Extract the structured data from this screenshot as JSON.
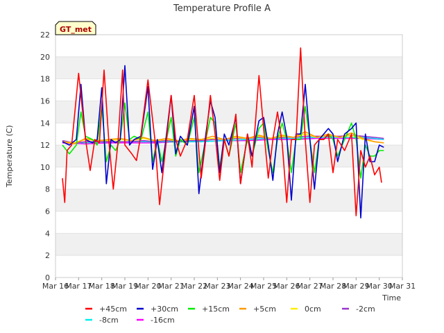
{
  "chart_data": {
    "type": "line",
    "title": "Temperature Profile A",
    "xlabel": "Time",
    "ylabel": "Temperature (C)",
    "annotation": "GT_met",
    "ylim": [
      0,
      22
    ],
    "yticks": [
      0,
      2,
      4,
      6,
      8,
      10,
      12,
      14,
      16,
      18,
      20,
      22
    ],
    "xlim": [
      16,
      31
    ],
    "xticks": [
      16,
      17,
      18,
      19,
      20,
      21,
      22,
      23,
      24,
      25,
      26,
      27,
      28,
      29,
      30,
      31
    ],
    "xtick_labels": [
      "Mar 16",
      "Mar 17",
      "Mar 18",
      "Mar 19",
      "Mar 20",
      "Mar 21",
      "Mar 22",
      "Mar 23",
      "Mar 24",
      "Mar 25",
      "Mar 26",
      "Mar 27",
      "Mar 28",
      "Mar 29",
      "Mar 30",
      "Mar 31"
    ],
    "grid": "horizontal bands",
    "legend_position": "bottom",
    "series": [
      {
        "name": "+45cm",
        "color": "#ff0000",
        "x": [
          16.3,
          16.4,
          16.5,
          16.7,
          17.0,
          17.3,
          17.5,
          17.7,
          17.9,
          18.1,
          18.3,
          18.5,
          18.7,
          18.9,
          19.0,
          19.3,
          19.5,
          19.7,
          20.0,
          20.3,
          20.5,
          20.8,
          21.0,
          21.2,
          21.4,
          21.7,
          22.0,
          22.3,
          22.5,
          22.7,
          22.9,
          23.1,
          23.3,
          23.5,
          23.8,
          24.0,
          24.3,
          24.5,
          24.8,
          25.0,
          25.2,
          25.4,
          25.6,
          25.8,
          26.0,
          26.2,
          26.4,
          26.6,
          26.8,
          27.0,
          27.2,
          27.4,
          27.6,
          27.8,
          28.0,
          28.2,
          28.5,
          28.8,
          29.0,
          29.2,
          29.4,
          29.6,
          29.8,
          30.0,
          30.1
        ],
        "values": [
          9.0,
          6.8,
          11.5,
          12.0,
          18.5,
          12.5,
          9.7,
          12.5,
          12.2,
          18.8,
          12.5,
          8.0,
          12.2,
          18.8,
          12.0,
          11.2,
          10.6,
          13.0,
          17.9,
          12.5,
          6.6,
          12.5,
          16.5,
          12.5,
          11.0,
          12.5,
          16.5,
          9.0,
          12.5,
          16.5,
          13.0,
          8.8,
          12.5,
          11.0,
          14.8,
          8.5,
          13.0,
          10.0,
          18.3,
          13.5,
          9.0,
          12.5,
          15.0,
          12.2,
          6.8,
          12.5,
          12.5,
          20.8,
          12.5,
          6.8,
          12.0,
          12.5,
          12.5,
          13.0,
          9.5,
          12.5,
          11.5,
          13.0,
          5.6,
          11.5,
          10.0,
          11.0,
          9.3,
          10.0,
          8.6
        ]
      },
      {
        "name": "+30cm",
        "color": "#0000cc",
        "x": [
          16.3,
          16.6,
          16.9,
          17.1,
          17.3,
          17.6,
          17.8,
          18.0,
          18.2,
          18.4,
          18.6,
          18.8,
          19.0,
          19.2,
          19.4,
          19.7,
          20.0,
          20.2,
          20.4,
          20.6,
          20.8,
          21.0,
          21.2,
          21.4,
          21.7,
          22.0,
          22.2,
          22.5,
          22.7,
          22.9,
          23.1,
          23.3,
          23.5,
          23.8,
          24.0,
          24.3,
          24.5,
          24.8,
          25.0,
          25.2,
          25.4,
          25.6,
          25.8,
          26.0,
          26.2,
          26.4,
          26.6,
          26.8,
          27.0,
          27.2,
          27.4,
          27.6,
          27.8,
          28.0,
          28.2,
          28.5,
          28.8,
          29.0,
          29.2,
          29.4,
          29.6,
          29.8,
          30.0,
          30.2
        ],
        "values": [
          12.3,
          12.0,
          12.5,
          17.5,
          12.5,
          12.2,
          12.5,
          17.2,
          8.5,
          12.5,
          12.2,
          12.5,
          19.2,
          12.0,
          12.5,
          12.8,
          17.3,
          9.8,
          12.5,
          9.5,
          13.0,
          16.5,
          11.2,
          12.8,
          12.0,
          15.5,
          7.6,
          13.0,
          16.0,
          14.5,
          9.5,
          13.0,
          12.0,
          14.5,
          8.5,
          13.0,
          11.0,
          14.2,
          14.5,
          12.0,
          8.8,
          13.0,
          15.0,
          12.8,
          7.0,
          13.0,
          13.0,
          17.5,
          12.5,
          8.0,
          12.5,
          13.0,
          13.5,
          13.0,
          10.5,
          13.0,
          13.5,
          14.0,
          5.4,
          13.0,
          10.5,
          10.5,
          12.0,
          11.8
        ]
      },
      {
        "name": "+15cm",
        "color": "#00ee00",
        "x": [
          16.3,
          16.6,
          16.9,
          17.1,
          17.3,
          17.6,
          17.8,
          18.0,
          18.2,
          18.4,
          18.6,
          18.8,
          19.0,
          19.2,
          19.4,
          19.7,
          20.0,
          20.2,
          20.4,
          20.6,
          20.8,
          21.0,
          21.2,
          21.4,
          21.7,
          22.0,
          22.2,
          22.5,
          22.7,
          22.9,
          23.1,
          23.3,
          23.5,
          23.8,
          24.0,
          24.3,
          24.5,
          24.8,
          25.0,
          25.2,
          25.4,
          25.6,
          25.8,
          26.0,
          26.2,
          26.4,
          26.6,
          26.8,
          27.0,
          27.2,
          27.4,
          27.6,
          27.8,
          28.0,
          28.2,
          28.5,
          28.8,
          29.0,
          29.2,
          29.4,
          29.6,
          29.8,
          30.0,
          30.2
        ],
        "values": [
          12.0,
          11.2,
          12.0,
          15.0,
          12.8,
          12.5,
          12.0,
          15.5,
          10.5,
          12.0,
          11.5,
          12.5,
          15.8,
          12.5,
          12.8,
          12.5,
          15.0,
          10.5,
          12.5,
          10.5,
          12.5,
          14.5,
          11.0,
          12.5,
          12.0,
          14.5,
          9.5,
          12.5,
          14.5,
          14.0,
          10.0,
          12.5,
          11.0,
          14.0,
          9.5,
          12.5,
          11.0,
          13.5,
          14.0,
          11.5,
          9.5,
          12.5,
          14.0,
          12.5,
          9.5,
          12.5,
          12.5,
          15.5,
          12.5,
          9.5,
          12.5,
          12.5,
          13.0,
          12.5,
          11.0,
          12.5,
          14.0,
          12.5,
          9.0,
          12.0,
          11.0,
          11.0,
          11.5,
          11.5
        ]
      },
      {
        "name": "+5cm",
        "color": "#ff9900",
        "x": [
          16.3,
          16.8,
          17.3,
          17.8,
          18.3,
          18.8,
          19.3,
          19.8,
          20.3,
          20.8,
          21.3,
          21.8,
          22.3,
          22.8,
          23.3,
          23.8,
          24.3,
          24.8,
          25.3,
          25.8,
          26.3,
          26.8,
          27.3,
          27.8,
          28.3,
          28.8,
          29.3,
          29.8,
          30.2
        ],
        "values": [
          12.3,
          12.1,
          12.6,
          12.4,
          12.5,
          12.6,
          12.4,
          12.7,
          12.4,
          12.6,
          12.4,
          12.6,
          12.5,
          12.8,
          12.5,
          12.8,
          12.6,
          12.9,
          12.6,
          12.9,
          12.7,
          13.2,
          12.7,
          13.0,
          12.7,
          13.1,
          12.6,
          12.3,
          12.2
        ]
      },
      {
        "name": "0cm",
        "color": "#ffee00",
        "x": [
          16.3,
          16.8,
          17.3,
          17.8,
          18.3,
          18.8,
          19.3,
          19.8,
          20.3,
          20.8,
          21.3,
          21.8,
          22.3,
          22.8,
          23.3,
          23.8,
          24.3,
          24.8,
          25.3,
          25.8,
          26.3,
          26.8,
          27.3,
          27.8,
          28.3,
          28.8,
          29.3,
          29.8,
          30.2
        ],
        "values": [
          12.3,
          12.2,
          12.5,
          12.4,
          12.4,
          12.5,
          12.4,
          12.6,
          12.4,
          12.5,
          12.4,
          12.5,
          12.5,
          12.6,
          12.5,
          12.7,
          12.6,
          12.8,
          12.6,
          12.8,
          12.7,
          13.0,
          12.7,
          12.9,
          12.7,
          12.9,
          12.5,
          12.3,
          12.2
        ]
      },
      {
        "name": "-2cm",
        "color": "#9933cc",
        "x": [
          16.3,
          16.8,
          17.3,
          17.8,
          18.3,
          18.8,
          19.3,
          19.8,
          20.3,
          20.8,
          21.3,
          21.8,
          22.3,
          22.8,
          23.3,
          23.8,
          24.3,
          24.8,
          25.3,
          25.8,
          26.3,
          26.8,
          27.3,
          27.8,
          28.3,
          28.8,
          29.3,
          29.8,
          30.2
        ],
        "values": [
          12.4,
          12.2,
          12.3,
          12.3,
          12.3,
          12.3,
          12.3,
          12.4,
          12.3,
          12.4,
          12.3,
          12.4,
          12.4,
          12.5,
          12.5,
          12.6,
          12.6,
          12.7,
          12.6,
          12.7,
          12.7,
          12.8,
          12.8,
          12.8,
          12.8,
          12.9,
          12.8,
          12.7,
          12.6
        ]
      },
      {
        "name": "-8cm",
        "color": "#00eeee",
        "x": [
          16.3,
          17.3,
          18.3,
          19.3,
          20.3,
          21.3,
          22.3,
          23.3,
          24.3,
          25.3,
          26.3,
          27.3,
          28.3,
          29.3,
          30.2
        ],
        "values": [
          12.3,
          12.2,
          12.3,
          12.3,
          12.3,
          12.3,
          12.3,
          12.4,
          12.5,
          12.6,
          12.6,
          12.7,
          12.7,
          12.7,
          12.5
        ]
      },
      {
        "name": "-16cm",
        "color": "#ff00ff",
        "x": [
          16.3,
          17.3,
          18.3,
          19.3,
          20.3,
          21.3,
          22.3,
          23.3,
          24.3,
          25.3,
          26.3,
          27.3,
          28.3,
          29.3,
          30.2
        ],
        "values": [
          12.2,
          12.1,
          12.2,
          12.2,
          12.2,
          12.3,
          12.3,
          12.4,
          12.4,
          12.5,
          12.5,
          12.6,
          12.6,
          12.6,
          12.5
        ]
      }
    ]
  }
}
